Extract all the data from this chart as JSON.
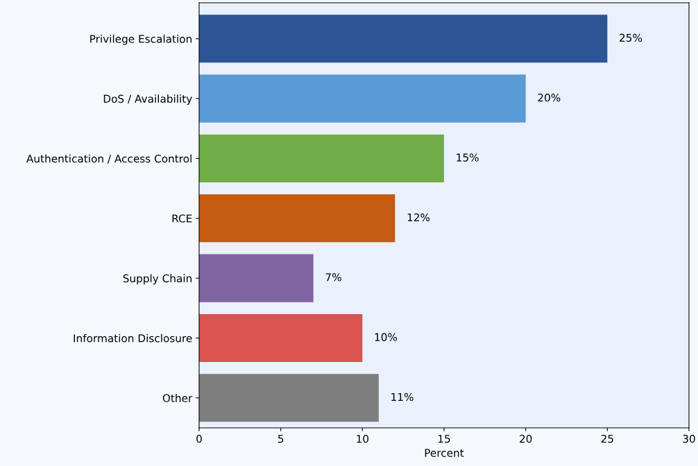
{
  "chart_data": {
    "type": "bar",
    "orientation": "horizontal",
    "xlabel": "Percent",
    "categories": [
      "Privilege Escalation",
      "DoS / Availability",
      "Authentication / Access Control",
      "RCE",
      "Supply Chain",
      "Information Disclosure",
      "Other"
    ],
    "values": [
      25,
      20,
      15,
      12,
      7,
      10,
      11
    ],
    "colors": [
      "#2d5495",
      "#5b9bd5",
      "#70ad47",
      "#c55a11",
      "#8064a2",
      "#d9534f",
      "#7f7f7f"
    ],
    "value_labels": [
      "25%",
      "20%",
      "15%",
      "12%",
      "7%",
      "10%",
      "11%"
    ],
    "xlim": [
      0,
      30
    ],
    "xticks": [
      0,
      5,
      10,
      15,
      20,
      25,
      30
    ],
    "grid": false
  }
}
